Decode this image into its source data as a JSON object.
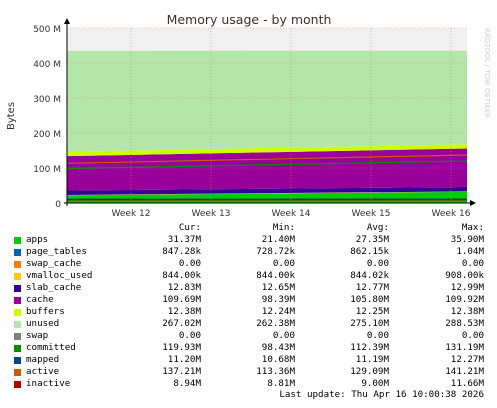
{
  "chart_data": {
    "type": "area",
    "title": "Memory usage - by month",
    "ylabel": "Bytes",
    "watermark": "RRDTOOL / TOBI OETIKER",
    "ylim": [
      0,
      500000000
    ],
    "y_ticks": [
      {
        "value": 0,
        "label": "0"
      },
      {
        "value": 100000000,
        "label": "100 M"
      },
      {
        "value": 200000000,
        "label": "200 M"
      },
      {
        "value": 300000000,
        "label": "300 M"
      },
      {
        "value": 400000000,
        "label": "400 M"
      },
      {
        "value": 500000000,
        "label": "500 M"
      }
    ],
    "x_ticks": [
      "Week 12",
      "Week 13",
      "Week 14",
      "Week 15",
      "Week 16"
    ],
    "x_range_weeks": [
      11.2,
      16.2
    ],
    "stack_start": [
      {
        "name": "apps",
        "color": "#00cc00",
        "value": 21400000
      },
      {
        "name": "page_tables",
        "color": "#0066b3",
        "value": 728720
      },
      {
        "name": "swap_cache",
        "color": "#ff8000",
        "value": 0
      },
      {
        "name": "vmalloc_used",
        "color": "#ffcc00",
        "value": 844000
      },
      {
        "name": "slab_cache",
        "color": "#330099",
        "value": 12650000
      },
      {
        "name": "cache",
        "color": "#990099",
        "value": 98390000
      },
      {
        "name": "buffers",
        "color": "#ccff00",
        "value": 12240000
      },
      {
        "name": "unused",
        "color": "#b3e6a8",
        "value": 288530000
      },
      {
        "name": "swap",
        "color": "#808080",
        "value": 0
      }
    ],
    "stack_end": [
      {
        "name": "apps",
        "color": "#00cc00",
        "value": 31370000
      },
      {
        "name": "page_tables",
        "color": "#0066b3",
        "value": 847280
      },
      {
        "name": "swap_cache",
        "color": "#ff8000",
        "value": 0
      },
      {
        "name": "vmalloc_used",
        "color": "#ffcc00",
        "value": 844000
      },
      {
        "name": "slab_cache",
        "color": "#330099",
        "value": 12830000
      },
      {
        "name": "cache",
        "color": "#990099",
        "value": 109690000
      },
      {
        "name": "buffers",
        "color": "#ccff00",
        "value": 12380000
      },
      {
        "name": "unused",
        "color": "#b3e6a8",
        "value": 267020000
      },
      {
        "name": "swap",
        "color": "#808080",
        "value": 0
      }
    ],
    "lines_start": [
      {
        "name": "committed",
        "color": "#008f00",
        "value": 98430000
      },
      {
        "name": "mapped",
        "color": "#00487d",
        "value": 10680000
      },
      {
        "name": "active",
        "color": "#cc5c00",
        "value": 113360000
      },
      {
        "name": "inactive",
        "color": "#b30000",
        "value": 8810000
      }
    ],
    "lines_end": [
      {
        "name": "committed",
        "color": "#008f00",
        "value": 119930000
      },
      {
        "name": "mapped",
        "color": "#00487d",
        "value": 11200000
      },
      {
        "name": "active",
        "color": "#cc5c00",
        "value": 137210000
      },
      {
        "name": "inactive",
        "color": "#b30000",
        "value": 8940000
      }
    ]
  },
  "legend": {
    "headers": {
      "cur": "Cur:",
      "min": "Min:",
      "avg": "Avg:",
      "max": "Max:"
    },
    "rows": [
      {
        "name": "apps",
        "color": "#00cc00",
        "cur": "31.37M",
        "min": "21.40M",
        "avg": "27.35M",
        "max": "35.90M"
      },
      {
        "name": "page_tables",
        "color": "#0066b3",
        "cur": "847.28k",
        "min": "728.72k",
        "avg": "862.15k",
        "max": "1.04M"
      },
      {
        "name": "swap_cache",
        "color": "#ff8000",
        "cur": "0.00",
        "min": "0.00",
        "avg": "0.00",
        "max": "0.00"
      },
      {
        "name": "vmalloc_used",
        "color": "#ffcc00",
        "cur": "844.00k",
        "min": "844.00k",
        "avg": "844.02k",
        "max": "908.00k"
      },
      {
        "name": "slab_cache",
        "color": "#330099",
        "cur": "12.83M",
        "min": "12.65M",
        "avg": "12.77M",
        "max": "12.99M"
      },
      {
        "name": "cache",
        "color": "#990099",
        "cur": "109.69M",
        "min": "98.39M",
        "avg": "105.80M",
        "max": "109.92M"
      },
      {
        "name": "buffers",
        "color": "#ccff00",
        "cur": "12.38M",
        "min": "12.24M",
        "avg": "12.25M",
        "max": "12.38M"
      },
      {
        "name": "unused",
        "color": "#b3e6a8",
        "cur": "267.02M",
        "min": "262.38M",
        "avg": "275.10M",
        "max": "288.53M"
      },
      {
        "name": "swap",
        "color": "#808080",
        "cur": "0.00",
        "min": "0.00",
        "avg": "0.00",
        "max": "0.00"
      },
      {
        "name": "committed",
        "color": "#008f00",
        "cur": "119.93M",
        "min": "98.43M",
        "avg": "112.39M",
        "max": "131.19M"
      },
      {
        "name": "mapped",
        "color": "#00487d",
        "cur": "11.20M",
        "min": "10.68M",
        "avg": "11.19M",
        "max": "12.27M"
      },
      {
        "name": "active",
        "color": "#cc5c00",
        "cur": "137.21M",
        "min": "113.36M",
        "avg": "129.09M",
        "max": "141.21M"
      },
      {
        "name": "inactive",
        "color": "#b30000",
        "cur": "8.94M",
        "min": "8.81M",
        "avg": "9.00M",
        "max": "11.66M"
      }
    ]
  },
  "footer": "Last update: Thu Apr 16 10:00:38 2026"
}
